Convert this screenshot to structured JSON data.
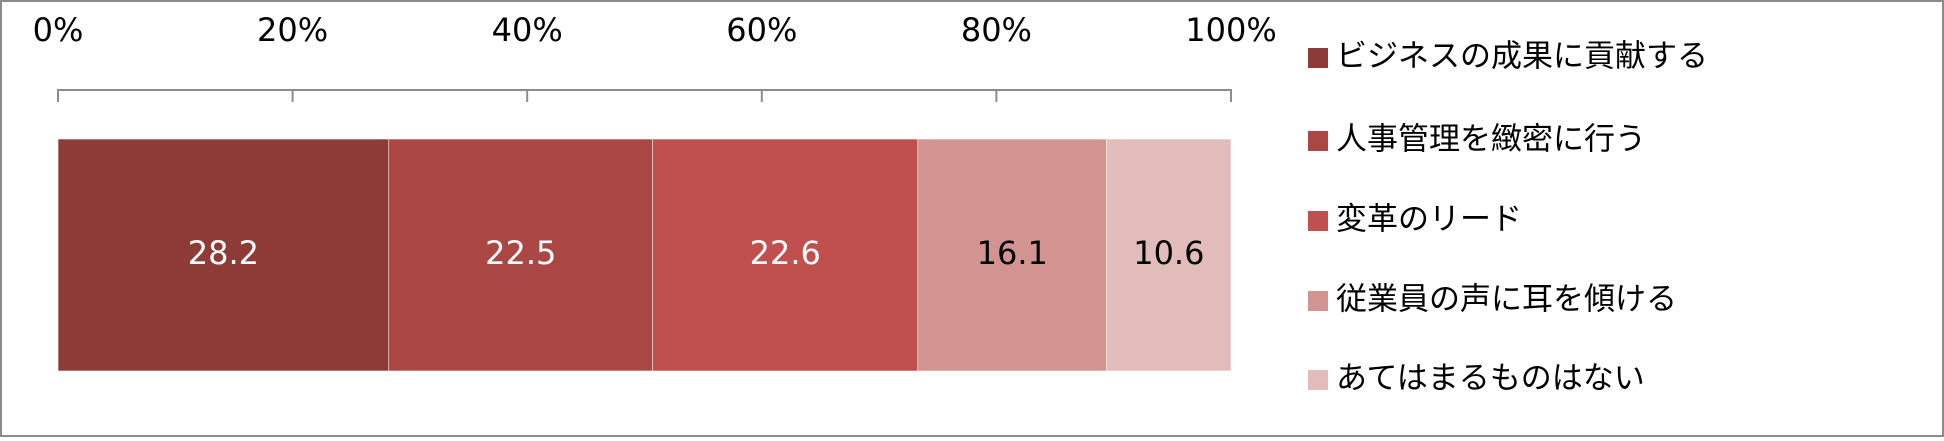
{
  "chart_data": {
    "type": "bar",
    "orientation": "horizontal",
    "stacked": true,
    "xlim": [
      0,
      100
    ],
    "xticks": [
      {
        "value": 0,
        "label": "0%"
      },
      {
        "value": 20,
        "label": "20%"
      },
      {
        "value": 40,
        "label": "40%"
      },
      {
        "value": 60,
        "label": "60%"
      },
      {
        "value": 80,
        "label": "80%"
      },
      {
        "value": 100,
        "label": "100%"
      }
    ],
    "legend": "right",
    "series": [
      {
        "name": "ビジネスの成果に貢献する",
        "color": "#8e3a37",
        "label_color": "#ffffff",
        "values": [
          28.2
        ]
      },
      {
        "name": "人事管理を緻密に行う",
        "color": "#aa4744",
        "label_color": "#ffffff",
        "values": [
          22.5
        ]
      },
      {
        "name": "変革のリード",
        "color": "#c0504d",
        "label_color": "#ffffff",
        "values": [
          22.6
        ]
      },
      {
        "name": "従業員の声に耳を傾ける",
        "color": "#d39391",
        "label_color": "#000000",
        "values": [
          16.1
        ]
      },
      {
        "name": "あてはまるものはない",
        "color": "#e2bcbb",
        "label_color": "#000000",
        "values": [
          10.6
        ]
      }
    ]
  }
}
